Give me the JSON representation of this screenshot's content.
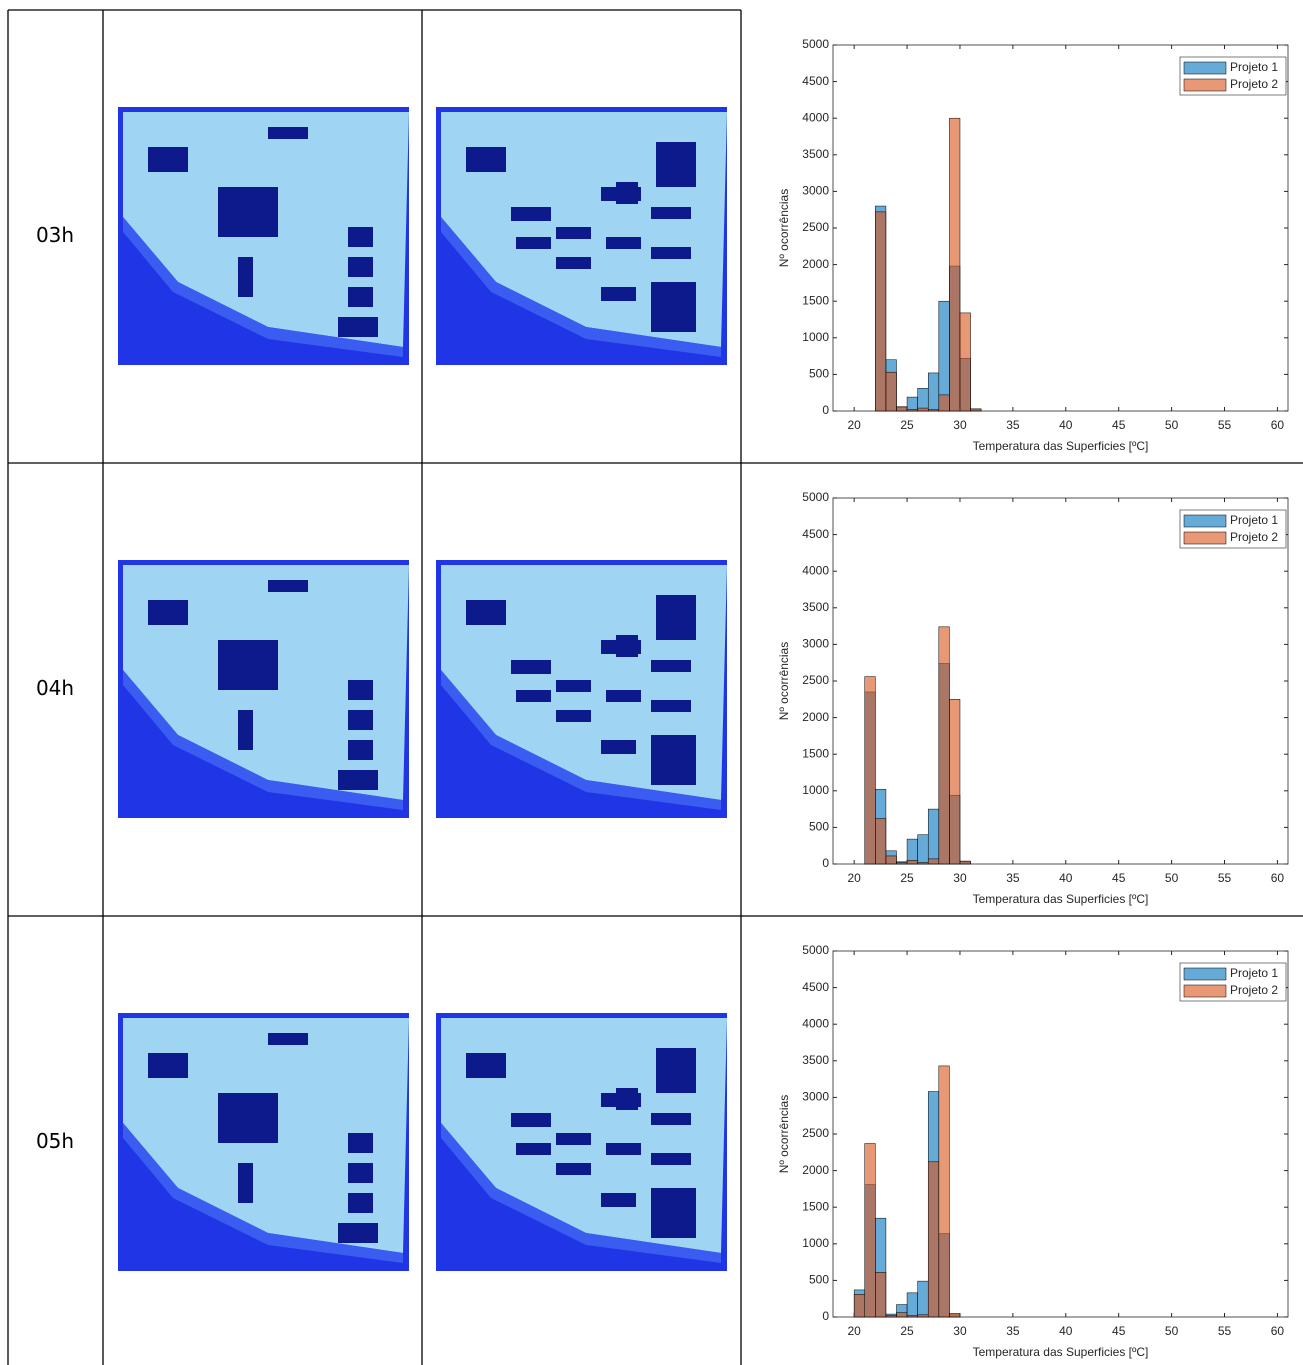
{
  "table": {
    "rows": [
      {
        "label": "03h"
      },
      {
        "label": "04h"
      },
      {
        "label": "05h"
      }
    ]
  },
  "chart_data": [
    {
      "type": "histogram",
      "xlabel": "Temperatura das Superficies [ºC]",
      "ylabel": "Nº ocorrências",
      "bins": [
        22,
        23,
        24,
        25,
        26,
        27,
        28,
        29,
        30,
        31,
        32
      ],
      "series": [
        {
          "name": "Projeto 1",
          "color": "#0072BD",
          "values": [
            2800,
            700,
            50,
            190,
            310,
            520,
            1500,
            1980,
            720,
            20
          ]
        },
        {
          "name": "Projeto 2",
          "color": "#D95319",
          "values": [
            2720,
            530,
            60,
            20,
            40,
            20,
            220,
            4000,
            1340,
            30
          ]
        }
      ],
      "xlim": [
        18,
        61
      ],
      "ylim": [
        0,
        5000
      ],
      "xticks": [
        20,
        25,
        30,
        35,
        40,
        45,
        50,
        55,
        60
      ],
      "yticks": [
        0,
        500,
        1000,
        1500,
        2000,
        2500,
        3000,
        3500,
        4000,
        4500,
        5000
      ],
      "legend": "upper right"
    },
    {
      "type": "histogram",
      "xlabel": "Temperatura das Superficies [ºC]",
      "ylabel": "Nº ocorrências",
      "bins": [
        21,
        22,
        23,
        24,
        25,
        26,
        27,
        28,
        29,
        30,
        31
      ],
      "series": [
        {
          "name": "Projeto 1",
          "color": "#0072BD",
          "values": [
            2350,
            1020,
            180,
            30,
            340,
            400,
            750,
            2740,
            940,
            30
          ]
        },
        {
          "name": "Projeto 2",
          "color": "#D95319",
          "values": [
            2560,
            620,
            110,
            20,
            50,
            20,
            70,
            3240,
            2250,
            40
          ]
        }
      ],
      "xlim": [
        18,
        61
      ],
      "ylim": [
        0,
        5000
      ],
      "xticks": [
        20,
        25,
        30,
        35,
        40,
        45,
        50,
        55,
        60
      ],
      "yticks": [
        0,
        500,
        1000,
        1500,
        2000,
        2500,
        3000,
        3500,
        4000,
        4500,
        5000
      ],
      "legend": "upper right"
    },
    {
      "type": "histogram",
      "xlabel": "Temperatura das Superficies [ºC]",
      "ylabel": "Nº ocorrências",
      "bins": [
        20,
        21,
        22,
        23,
        24,
        25,
        26,
        27,
        28,
        29,
        30
      ],
      "series": [
        {
          "name": "Projeto 1",
          "color": "#0072BD",
          "values": [
            370,
            1810,
            1350,
            40,
            170,
            330,
            490,
            3080,
            1140,
            30
          ]
        },
        {
          "name": "Projeto 2",
          "color": "#D95319",
          "values": [
            310,
            2370,
            610,
            20,
            60,
            20,
            30,
            2120,
            3430,
            50
          ]
        }
      ],
      "xlim": [
        18,
        61
      ],
      "ylim": [
        0,
        5000
      ],
      "xticks": [
        20,
        25,
        30,
        35,
        40,
        45,
        50,
        55,
        60
      ],
      "yticks": [
        0,
        500,
        1000,
        1500,
        2000,
        2500,
        3000,
        3500,
        4000,
        4500,
        5000
      ],
      "legend": "upper right"
    }
  ]
}
